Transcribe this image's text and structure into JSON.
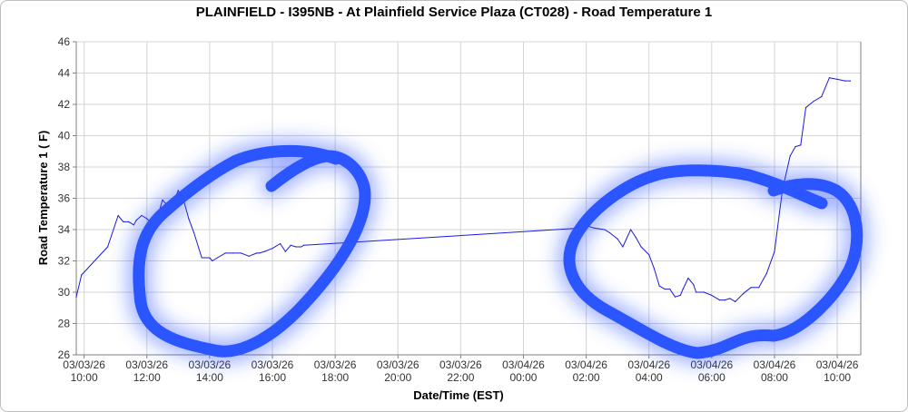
{
  "chart_data": {
    "type": "line",
    "title": "PLAINFIELD - I395NB - At Plainfield Service Plaza (CT028) - Road Temperature 1",
    "xlabel": "Date/Time (EST)",
    "ylabel": "Road Temperature 1 ( F)",
    "ylim": [
      26,
      46
    ],
    "yticks": [
      26,
      28,
      30,
      32,
      34,
      36,
      38,
      40,
      42,
      44,
      46
    ],
    "xlim": [
      "03/03/26 09:45",
      "03/04/26 10:45"
    ],
    "xticks": [
      {
        "date": "03/03/26",
        "time": "10:00"
      },
      {
        "date": "03/03/26",
        "time": "12:00"
      },
      {
        "date": "03/03/26",
        "time": "14:00"
      },
      {
        "date": "03/03/26",
        "time": "16:00"
      },
      {
        "date": "03/03/26",
        "time": "18:00"
      },
      {
        "date": "03/03/26",
        "time": "20:00"
      },
      {
        "date": "03/03/26",
        "time": "22:00"
      },
      {
        "date": "03/04/26",
        "time": "00:00"
      },
      {
        "date": "03/04/26",
        "time": "02:00"
      },
      {
        "date": "03/04/26",
        "time": "04:00"
      },
      {
        "date": "03/04/26",
        "time": "06:00"
      },
      {
        "date": "03/04/26",
        "time": "08:00"
      },
      {
        "date": "03/04/26",
        "time": "10:00"
      }
    ],
    "grid": true,
    "line_color": "#1a1adc",
    "series": [
      {
        "x": [
          "03/03/26 09:45",
          "03/03/26 09:55",
          "03/03/26 10:45",
          "03/03/26 11:05",
          "03/03/26 11:15",
          "03/03/26 11:25",
          "03/03/26 11:35",
          "03/03/26 11:40",
          "03/03/26 11:50",
          "03/03/26 12:00",
          "03/03/26 12:15",
          "03/03/26 12:30",
          "03/03/26 12:45",
          "03/03/26 13:00",
          "03/03/26 13:10",
          "03/03/26 13:20",
          "03/03/26 13:30",
          "03/03/26 13:45",
          "03/03/26 14:00",
          "03/03/26 14:05",
          "03/03/26 14:15",
          "03/03/26 14:30",
          "03/03/26 14:45",
          "03/03/26 15:00",
          "03/03/26 15:15",
          "03/03/26 15:30",
          "03/03/26 15:35",
          "03/03/26 15:45",
          "03/03/26 16:00",
          "03/03/26 16:15",
          "03/03/26 16:25",
          "03/03/26 16:35",
          "03/03/26 16:45",
          "03/03/26 16:55",
          "03/03/26 17:00",
          "03/04/26 01:50",
          "03/04/26 02:05",
          "03/04/26 02:15",
          "03/04/26 02:35",
          "03/04/26 02:45",
          "03/04/26 03:00",
          "03/04/26 03:10",
          "03/04/26 03:25",
          "03/04/26 03:35",
          "03/04/26 03:45",
          "03/04/26 04:00",
          "03/04/26 04:10",
          "03/04/26 04:20",
          "03/04/26 04:30",
          "03/04/26 04:40",
          "03/04/26 04:50",
          "03/04/26 05:00",
          "03/04/26 05:05",
          "03/04/26 05:15",
          "03/04/26 05:25",
          "03/04/26 05:30",
          "03/04/26 05:45",
          "03/04/26 06:00",
          "03/04/26 06:15",
          "03/04/26 06:25",
          "03/04/26 06:35",
          "03/04/26 06:45",
          "03/04/26 07:00",
          "03/04/26 07:15",
          "03/04/26 07:30",
          "03/04/26 07:45",
          "03/04/26 08:00",
          "03/04/26 08:15",
          "03/04/26 08:30",
          "03/04/26 08:40",
          "03/04/26 08:50",
          "03/04/26 09:00",
          "03/04/26 09:15",
          "03/04/26 09:30",
          "03/04/26 09:45",
          "03/04/26 10:00",
          "03/04/26 10:15",
          "03/04/26 10:25"
        ],
        "values": [
          29.7,
          31.1,
          32.9,
          34.9,
          34.5,
          34.5,
          34.3,
          34.6,
          34.9,
          34.7,
          34.2,
          35.9,
          35.3,
          36.5,
          35.9,
          34.7,
          33.8,
          32.2,
          32.2,
          32.0,
          32.2,
          32.5,
          32.5,
          32.5,
          32.3,
          32.5,
          32.5,
          32.6,
          32.8,
          33.1,
          32.6,
          33.0,
          32.9,
          32.9,
          33.0,
          34.1,
          34.2,
          34.1,
          34.0,
          33.8,
          33.4,
          32.9,
          34.0,
          33.5,
          32.9,
          32.4,
          31.5,
          30.4,
          30.2,
          30.2,
          29.7,
          29.8,
          30.2,
          30.9,
          30.5,
          30.0,
          30.0,
          29.8,
          29.5,
          29.5,
          29.6,
          29.4,
          29.9,
          30.3,
          30.3,
          31.2,
          32.6,
          36.5,
          38.7,
          39.3,
          39.4,
          41.8,
          42.2,
          42.5,
          43.7,
          43.6,
          43.5,
          43.5
        ]
      }
    ],
    "annotations": {
      "type": "hand-drawn circles",
      "color": "#2b55ff"
    }
  }
}
